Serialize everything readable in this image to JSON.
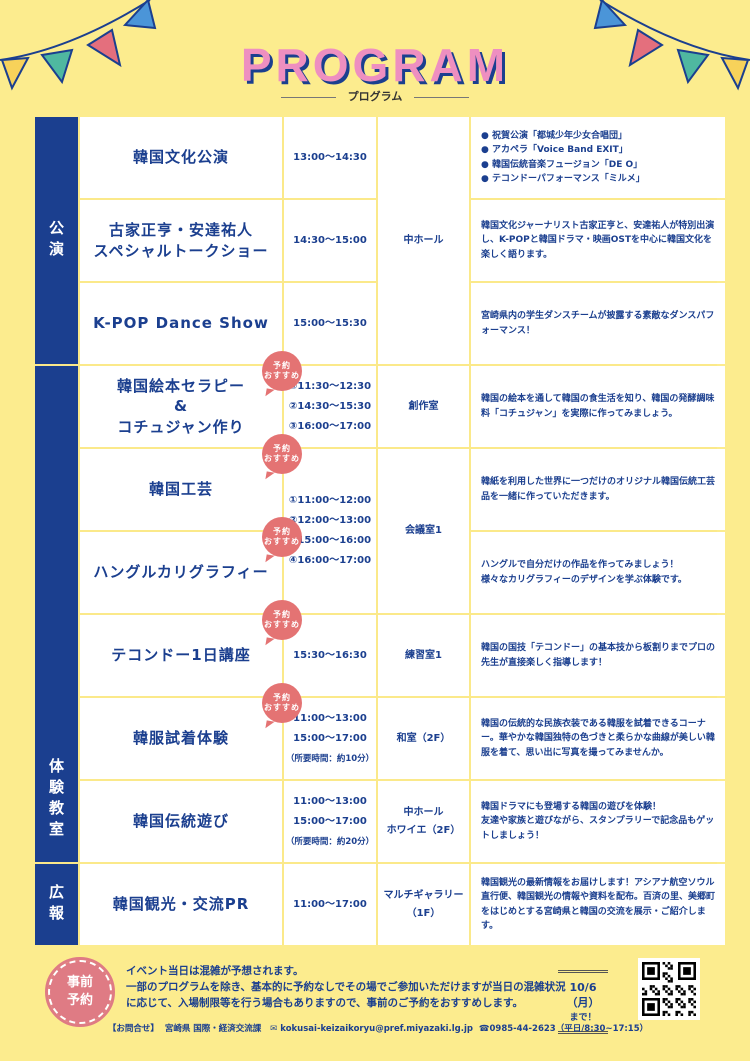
{
  "header": {
    "title": "PROGRAM",
    "subtitle": "プログラム"
  },
  "categories": [
    "公演",
    "体験教室",
    "広報"
  ],
  "badge": "予約\nおすすめ",
  "rows": [
    {
      "title": "韓国文化公演",
      "time": "13:00〜14:30",
      "desc": "● 祝賀公演「都城少年少女合唱団」\n● アカペラ「Voice Band EXIT」\n● 韓国伝統音楽フュージョン「DE O」\n● テコンドーパフォーマンス「ミルメ」"
    },
    {
      "title": "古家正亨・安達祐人\nスペシャルトークショー",
      "time": "14:30〜15:00",
      "desc": "韓国文化ジャーナリスト古家正亨と、安達祐人が特別出演し、K-POPと韓国ドラマ・映画OSTを中心に韓国文化を楽しく語ります。"
    },
    {
      "title": "K-POP Dance Show",
      "time": "15:00〜15:30",
      "desc": "宮崎県内の学生ダンスチームが披露する素敵なダンスパフォーマンス！"
    },
    {
      "title": "韓国絵本セラピー\n&\nコチュジャン作り",
      "time": "①11:30〜12:30\n②14:30〜15:30\n③16:00〜17:00",
      "desc": "韓国の絵本を通して韓国の食生活を知り、韓国の発酵調味料「コチュジャン」を実際に作ってみましょう。"
    },
    {
      "title": "韓国工芸",
      "time": "①11:00〜12:00\n②12:00〜13:00\n③15:00〜16:00\n④16:00〜17:00",
      "desc": "韓紙を利用した世界に一つだけのオリジナル韓国伝統工芸品を一緒に作っていただきます。"
    },
    {
      "title": "ハングルカリグラフィー",
      "desc": "ハングルで自分だけの作品を作ってみましょう！\n様々なカリグラフィーのデザインを学ぶ体験です。"
    },
    {
      "title": "テコンドー1日講座",
      "time": "15:30〜16:30",
      "desc": "韓国の国技「テコンドー」の基本技から板割りまでプロの先生が直接楽しく指導します！"
    },
    {
      "title": "韓服試着体験",
      "time": "11:00〜13:00\n15:00〜17:00",
      "time_note": "（所要時間：約10分）",
      "desc": "韓国の伝統的な民族衣装である韓服を試着できるコーナー。華やかな韓国独特の色づきと柔らかな曲線が美しい韓服を着て、思い出に写真を撮ってみませんか。"
    },
    {
      "title": "韓国伝統遊び",
      "time": "11:00〜13:00\n15:00〜17:00",
      "time_note": "（所要時間：約20分）",
      "desc": "韓国ドラマにも登場する韓国の遊びを体験！\n友達や家族と遊びながら、スタンプラリーで記念品もゲットしましょう！"
    },
    {
      "title": "韓国観光・交流PR",
      "time": "11:00〜17:00",
      "desc": "韓国観光の最新情報をお届けします！アシアナ航空ソウル直行便、韓国観光の情報や資料を配布。百済の里、美郷町をはじめとする宮崎県と韓国の交流を展示・ご紹介します。"
    }
  ],
  "venues": [
    "中ホール",
    "創作室",
    "会議室1",
    "練習室1",
    "和室（2F）",
    "中ホール\nホワイエ（2F）",
    "マルチギャラリー\n（1F）"
  ],
  "footer": {
    "circle": "事前\n予約",
    "note": "イベント当日は混雑が予想されます。\n一部のプログラムを除き、基本的に予約なしでその場でご参加いただけますが当日の混雑状況に応じて、入場制限等を行う場合もありますので、事前のご予約をおすすめします。",
    "deadline": "10/6（月）",
    "deadline_sub": "まで！",
    "contact_label": "【お問合せ】",
    "dept": "宮崎県 国際・経済交流課",
    "email": "kokusai-keizaikoryu@pref.miyazaki.lg.jp",
    "phone": "0985-44-2623（平日/8:30~17:15）"
  },
  "colors": {
    "background": "#fcec8e",
    "navy": "#1b3f8f",
    "pink": "#ee8fc0",
    "badge": "#e47373"
  }
}
